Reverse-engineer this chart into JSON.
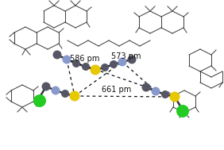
{
  "distances": {
    "d1": "586 pm",
    "d2": "573 pm",
    "d3": "661 pm"
  },
  "atoms": {
    "yellow": "#e8c800",
    "green": "#22cc22",
    "blue_gray": "#8899cc",
    "dark_gray": "#555566",
    "mid_gray": "#777788"
  },
  "wire_color": "#444444",
  "dashed_color": "#111111",
  "text_color": "#111111",
  "font_size": 7.0
}
